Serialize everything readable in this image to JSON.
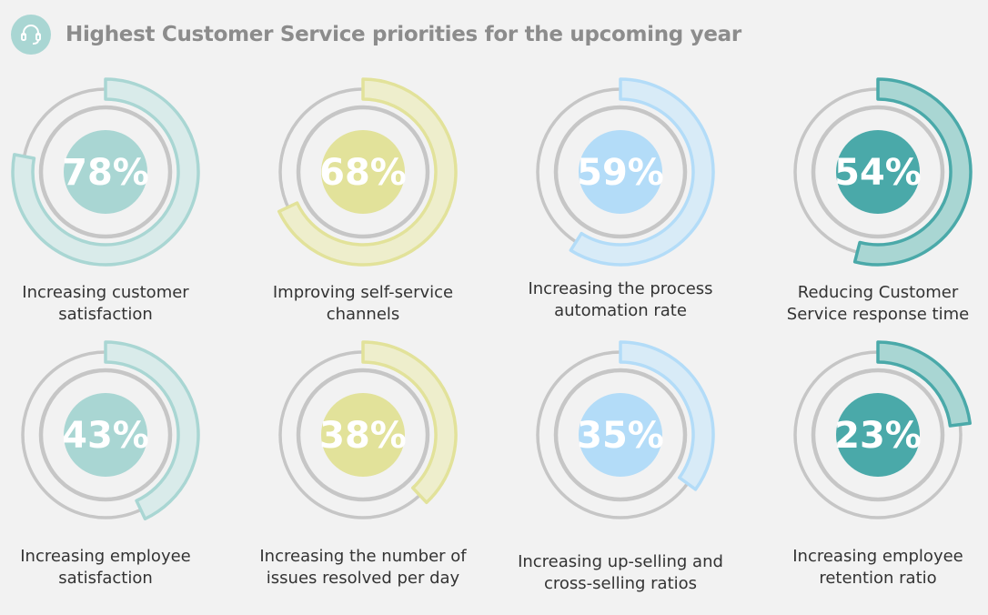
{
  "chart_data": {
    "type": "donut-grid",
    "title": "Highest Customer Service priorities for the upcoming year",
    "unit": "%",
    "items": [
      {
        "value": 78,
        "label": "Increasing customer satisfaction",
        "palette": "teal"
      },
      {
        "value": 68,
        "label": "Improving self-service channels",
        "palette": "yellow"
      },
      {
        "value": 59,
        "label": "Increasing the process automation rate",
        "palette": "blue"
      },
      {
        "value": 54,
        "label": "Reducing Customer Service response time",
        "palette": "darkteal"
      },
      {
        "value": 43,
        "label": "Increasing employee satisfaction",
        "palette": "teal"
      },
      {
        "value": 38,
        "label": "Increasing the number of issues resolved per day",
        "palette": "yellow"
      },
      {
        "value": 35,
        "label": "Increasing up-selling and cross-selling ratios",
        "palette": "blue"
      },
      {
        "value": 23,
        "label": "Increasing employee retention ratio",
        "palette": "darkteal"
      }
    ]
  },
  "palettes": {
    "teal": {
      "center": "#a9d6d3",
      "arc_fill": "#d9ebea",
      "arc_stroke": "#a9d6d3"
    },
    "yellow": {
      "center": "#e2e29a",
      "arc_fill": "#eeeecc",
      "arc_stroke": "#e2e29a"
    },
    "blue": {
      "center": "#b3dcf8",
      "arc_fill": "#d8ebf7",
      "arc_stroke": "#b3dcf8"
    },
    "darkteal": {
      "center": "#4aa9a9",
      "arc_fill": "#a9d6d3",
      "arc_stroke": "#4aa9a9"
    }
  },
  "header": {
    "icon": "headset-icon"
  }
}
